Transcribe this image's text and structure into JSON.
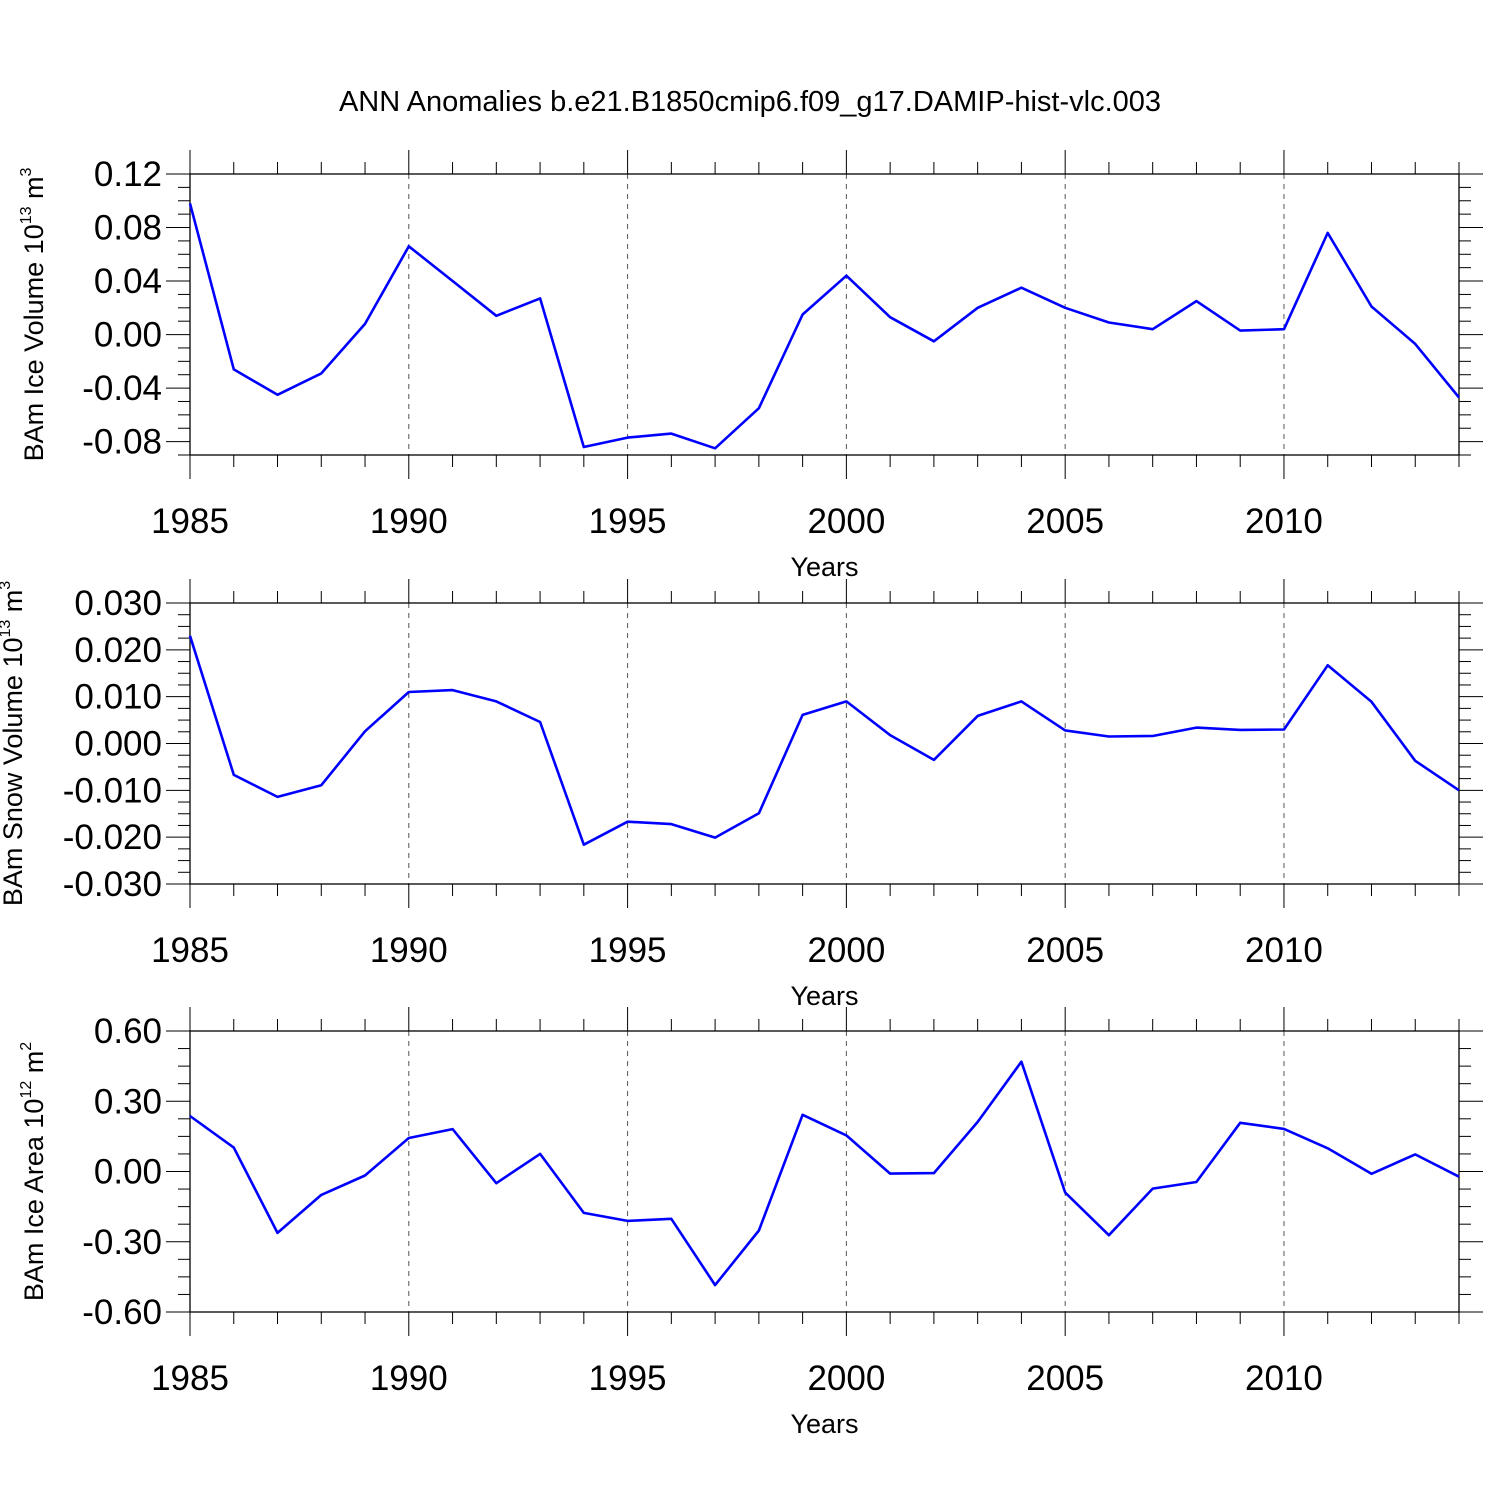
{
  "title": "ANN Anomalies b.e21.B1850cmip6.f09_g17.DAMIP-hist-vlc.003",
  "chart_data": [
    {
      "type": "line",
      "ylabel": {
        "text": "BAm Ice Volume 10",
        "exp": "13",
        "unit": " m",
        "unit_exp": "3"
      },
      "xlabel": "Years",
      "xlim": [
        1985,
        2014
      ],
      "ylim": [
        -0.09,
        0.12
      ],
      "yticks": [
        -0.08,
        -0.04,
        0.0,
        0.04,
        0.08,
        0.12
      ],
      "ytick_labels": [
        "-0.08",
        "-0.04",
        "0.00",
        "0.04",
        "0.08",
        "0.12"
      ],
      "xticks": [
        1985,
        1990,
        1995,
        2000,
        2005,
        2010
      ],
      "xtick_labels": [
        "1985",
        "1990",
        "1995",
        "2000",
        "2005",
        "2010"
      ],
      "grid": "vertical dashed at major x ticks",
      "line_color": "#0000ff",
      "x": [
        1985,
        1986,
        1987,
        1988,
        1989,
        1990,
        1991,
        1992,
        1993,
        1994,
        1995,
        1996,
        1997,
        1998,
        1999,
        2000,
        2001,
        2002,
        2003,
        2004,
        2005,
        2006,
        2007,
        2008,
        2009,
        2010,
        2011,
        2012,
        2013,
        2014
      ],
      "values": [
        0.098,
        -0.026,
        -0.045,
        -0.029,
        0.008,
        0.066,
        0.04,
        0.014,
        0.027,
        -0.084,
        -0.077,
        -0.074,
        -0.085,
        -0.055,
        0.015,
        0.044,
        0.013,
        -0.005,
        0.02,
        0.035,
        0.02,
        0.009,
        0.004,
        0.025,
        0.003,
        0.004,
        0.076,
        0.021,
        -0.007,
        -0.047
      ]
    },
    {
      "type": "line",
      "ylabel": {
        "text": "BAm Snow Volume 10",
        "exp": "13",
        "unit": " m",
        "unit_exp": "3"
      },
      "xlabel": "Years",
      "xlim": [
        1985,
        2014
      ],
      "ylim": [
        -0.03,
        0.03
      ],
      "yticks": [
        -0.03,
        -0.02,
        -0.01,
        0.0,
        0.01,
        0.02,
        0.03
      ],
      "ytick_labels": [
        "-0.030",
        "-0.020",
        "-0.010",
        "0.000",
        "0.010",
        "0.020",
        "0.030"
      ],
      "xticks": [
        1985,
        1990,
        1995,
        2000,
        2005,
        2010
      ],
      "xtick_labels": [
        "1985",
        "1990",
        "1995",
        "2000",
        "2005",
        "2010"
      ],
      "grid": "vertical dashed at major x ticks",
      "line_color": "#0000ff",
      "x": [
        1985,
        1986,
        1987,
        1988,
        1989,
        1990,
        1991,
        1992,
        1993,
        1994,
        1995,
        1996,
        1997,
        1998,
        1999,
        2000,
        2001,
        2002,
        2003,
        2004,
        2005,
        2006,
        2007,
        2008,
        2009,
        2010,
        2011,
        2012,
        2013,
        2014
      ],
      "values": [
        0.023,
        -0.0067,
        -0.0114,
        -0.0089,
        0.0026,
        0.011,
        0.0114,
        0.009,
        0.0046,
        -0.0216,
        -0.0167,
        -0.0172,
        -0.0201,
        -0.0149,
        0.0061,
        0.009,
        0.0018,
        -0.0035,
        0.0059,
        0.009,
        0.0028,
        0.0015,
        0.0016,
        0.0034,
        0.0029,
        0.003,
        0.0167,
        0.0089,
        -0.0037,
        -0.01
      ]
    },
    {
      "type": "line",
      "ylabel": {
        "text": "BAm Ice Area 10",
        "exp": "12",
        "unit": " m",
        "unit_exp": "2"
      },
      "xlabel": "Years",
      "xlim": [
        1985,
        2014
      ],
      "ylim": [
        -0.6,
        0.6
      ],
      "yticks": [
        -0.6,
        -0.3,
        0.0,
        0.3,
        0.6
      ],
      "ytick_labels": [
        "-0.60",
        "-0.30",
        "0.00",
        "0.30",
        "0.60"
      ],
      "xticks": [
        1985,
        1990,
        1995,
        2000,
        2005,
        2010
      ],
      "xtick_labels": [
        "1985",
        "1990",
        "1995",
        "2000",
        "2005",
        "2010"
      ],
      "grid": "vertical dashed at major x ticks",
      "line_color": "#0000ff",
      "x": [
        1985,
        1986,
        1987,
        1988,
        1989,
        1990,
        1991,
        1992,
        1993,
        1994,
        1995,
        1996,
        1997,
        1998,
        1999,
        2000,
        2001,
        2002,
        2003,
        2004,
        2005,
        2006,
        2007,
        2008,
        2009,
        2010,
        2011,
        2012,
        2013,
        2014
      ],
      "values": [
        0.237,
        0.102,
        -0.262,
        -0.1,
        -0.017,
        0.143,
        0.181,
        -0.05,
        0.075,
        -0.177,
        -0.211,
        -0.202,
        -0.485,
        -0.252,
        0.242,
        0.154,
        -0.009,
        -0.007,
        0.212,
        0.469,
        -0.09,
        -0.272,
        -0.073,
        -0.045,
        0.208,
        0.182,
        0.099,
        -0.01,
        0.073,
        -0.022
      ]
    }
  ]
}
